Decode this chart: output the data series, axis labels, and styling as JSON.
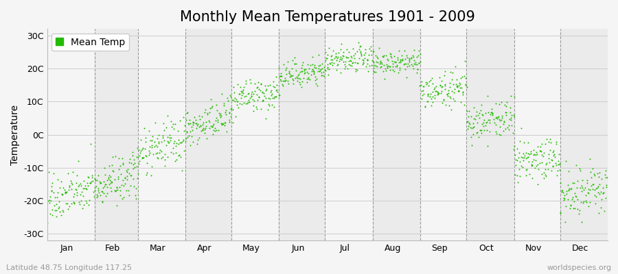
{
  "title": "Monthly Mean Temperatures 1901 - 2009",
  "ylabel": "Temperature",
  "xlabel_months": [
    "Jan",
    "Feb",
    "Mar",
    "Apr",
    "May",
    "Jun",
    "Jul",
    "Aug",
    "Sep",
    "Oct",
    "Nov",
    "Dec"
  ],
  "yticks": [
    -30,
    -20,
    -10,
    0,
    10,
    20,
    30
  ],
  "ytick_labels": [
    "-30C",
    "-20C",
    "-10C",
    "0C",
    "10C",
    "20C",
    "30C"
  ],
  "ylim": [
    -32,
    32
  ],
  "dot_color": "#22bb00",
  "bg_color": "#f5f5f5",
  "plot_bg_color": "#ebebeb",
  "alt_band_color": "#f5f5f5",
  "legend_label": "Mean Temp",
  "footnote_left": "Latitude 48.75 Longitude 117.25",
  "footnote_right": "worldspecies.org",
  "n_years": 109,
  "monthly_means": [
    -18.0,
    -14.0,
    -3.5,
    3.5,
    11.5,
    18.5,
    22.5,
    21.5,
    13.5,
    4.5,
    -7.5,
    -17.0
  ],
  "monthly_stds": [
    3.5,
    3.5,
    3.5,
    3.0,
    2.5,
    2.0,
    2.0,
    2.0,
    2.5,
    3.0,
    3.5,
    3.5
  ],
  "monthly_trend": [
    4.0,
    4.0,
    5.0,
    5.0,
    2.0,
    2.0,
    1.0,
    1.0,
    2.0,
    2.0,
    4.0,
    4.0
  ],
  "title_fontsize": 15,
  "label_fontsize": 10,
  "tick_fontsize": 9,
  "footnote_fontsize": 8,
  "dot_size": 2,
  "dot_alpha": 1.0
}
